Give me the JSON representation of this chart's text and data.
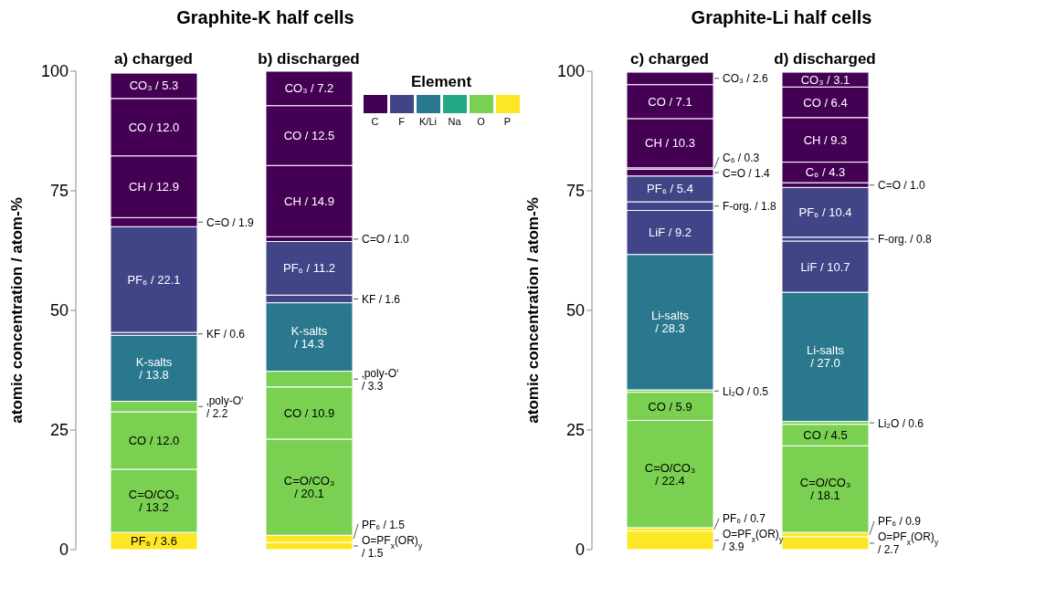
{
  "chart_data": [
    {
      "type": "bar",
      "title": "Graphite-K half cells",
      "ylabel": "atomic concentration / atom-%",
      "categories": [
        "a) charged",
        "b) discharged"
      ],
      "stacked": true,
      "ylim": [
        0,
        100
      ],
      "yticks": [
        0,
        25,
        50,
        75,
        100
      ],
      "legend": "top right",
      "legend_title": "Element",
      "series": [
        {
          "name": "C",
          "color": "#440154",
          "values": [
            null,
            null
          ]
        },
        {
          "name": "F",
          "color": "#414487",
          "values": [
            null,
            null
          ]
        },
        {
          "name": "K/Li",
          "color": "#2a788e",
          "values": [
            null,
            null
          ]
        },
        {
          "name": "Na",
          "color": "#22a884",
          "values": [
            null,
            null
          ]
        },
        {
          "name": "O",
          "color": "#7ad151",
          "values": [
            null,
            null
          ]
        },
        {
          "name": "P",
          "color": "#fde725",
          "values": [
            null,
            null
          ]
        },
        {
          "color": "#fde725",
          "values": [
            null,
            1.5
          ],
          "value_labels": [
            null,
            "O=PF$_{x}$(OR)$_{y}$ / 1.5"
          ]
        },
        {
          "color": "#fde725",
          "values": [
            3.6,
            1.5
          ],
          "value_labels": [
            "PF₆ / 3.6",
            "PF₆ / 1.5"
          ]
        },
        {
          "color": "#7ad151",
          "values": [
            13.2,
            20.1
          ],
          "value_labels": [
            "C=O/CO₃ / 13.2",
            "C=O/CO₃ / 20.1"
          ]
        },
        {
          "color": "#7ad151",
          "values": [
            12.0,
            10.9
          ],
          "value_labels": [
            "CO / 12.0",
            "CO / 10.9"
          ]
        },
        {
          "color": "#7ad151",
          "values": [
            2.2,
            3.3
          ],
          "value_labels": [
            "‚poly-O‘ / 2.2",
            "‚poly-O‘ / 3.3"
          ]
        },
        {
          "color": "#2a788e",
          "values": [
            13.8,
            14.3
          ],
          "value_labels": [
            "K-salts / 13.8",
            "K-salts / 14.3"
          ]
        },
        {
          "color": "#414487",
          "values": [
            0.6,
            1.6
          ],
          "value_labels": [
            "KF / 0.6",
            "KF / 1.6"
          ]
        },
        {
          "color": "#414487",
          "values": [
            22.1,
            11.2
          ],
          "value_labels": [
            "PF₆ / 22.1",
            "PF₆ / 11.2"
          ]
        },
        {
          "color": "#440154",
          "values": [
            1.9,
            1.0
          ],
          "value_labels": [
            "C=O / 1.9",
            "C=O / 1.0"
          ]
        },
        {
          "color": "#440154",
          "values": [
            12.9,
            14.9
          ],
          "value_labels": [
            "CH / 12.9",
            "CH / 14.9"
          ]
        },
        {
          "color": "#440154",
          "values": [
            12.0,
            12.5
          ],
          "value_labels": [
            "CO / 12.0",
            "CO / 12.5"
          ]
        },
        {
          "color": "#440154",
          "values": [
            5.3,
            7.2
          ],
          "value_labels": [
            "CO₃ / 5.3",
            "CO₃ / 7.2"
          ]
        }
      ]
    },
    {
      "type": "bar",
      "title": "Graphite-Li half cells",
      "ylabel": "atomic concentration / atom-%",
      "categories": [
        "c) charged",
        "d) discharged"
      ],
      "stacked": true,
      "ylim": [
        0,
        100
      ],
      "yticks": [
        0,
        25,
        50,
        75,
        100
      ],
      "series": [
        {
          "color": "#fde725",
          "values": [
            3.9,
            2.7
          ],
          "value_labels": [
            "O=PF$_{x}$(OR)$_{y}$ / 3.9",
            "O=PF$_{x}$(OR)$_{y}$ / 2.7"
          ]
        },
        {
          "color": "#fde725",
          "values": [
            0.7,
            0.9
          ],
          "value_labels": [
            "PF₆ / 0.7",
            "PF₆ / 0.9"
          ]
        },
        {
          "color": "#7ad151",
          "values": [
            22.4,
            18.1
          ],
          "value_labels": [
            "C=O/CO₃ / 22.4",
            "C=O/CO₃ / 18.1"
          ]
        },
        {
          "color": "#7ad151",
          "values": [
            5.9,
            4.5
          ],
          "value_labels": [
            "CO / 5.9",
            "CO / 4.5"
          ]
        },
        {
          "color": "#7ad151",
          "values": [
            0.5,
            0.6
          ],
          "value_labels": [
            "Li₂O / 0.5",
            "Li₂O / 0.6"
          ]
        },
        {
          "color": "#2a788e",
          "values": [
            28.3,
            27.0
          ],
          "value_labels": [
            "Li-salts / 28.3",
            "Li-salts / 27.0"
          ]
        },
        {
          "color": "#414487",
          "values": [
            9.2,
            10.7
          ],
          "value_labels": [
            "LiF / 9.2",
            "LiF / 10.7"
          ]
        },
        {
          "color": "#414487",
          "values": [
            1.8,
            0.8
          ],
          "value_labels": [
            "F-org. / 1.8",
            "F-org. / 0.8"
          ]
        },
        {
          "color": "#414487",
          "values": [
            5.4,
            10.4
          ],
          "value_labels": [
            "PF₆ / 5.4",
            "PF₆ / 10.4"
          ]
        },
        {
          "color": "#440154",
          "values": [
            1.4,
            1.0
          ],
          "value_labels": [
            "C=O / 1.4",
            "C=O / 1.0"
          ]
        },
        {
          "color": "#440154",
          "values": [
            0.3,
            4.3
          ],
          "value_labels": [
            "C₆ / 0.3",
            "C₆ / 4.3"
          ]
        },
        {
          "color": "#440154",
          "values": [
            10.3,
            9.3
          ],
          "value_labels": [
            "CH / 10.3",
            "CH / 9.3"
          ]
        },
        {
          "color": "#440154",
          "values": [
            7.1,
            6.4
          ],
          "value_labels": [
            "CO / 7.1",
            "CO / 6.4"
          ]
        },
        {
          "color": "#440154",
          "values": [
            2.6,
            3.1
          ],
          "value_labels": [
            "CO₃ / 2.6",
            "CO₃ / 3.1"
          ]
        }
      ]
    }
  ]
}
